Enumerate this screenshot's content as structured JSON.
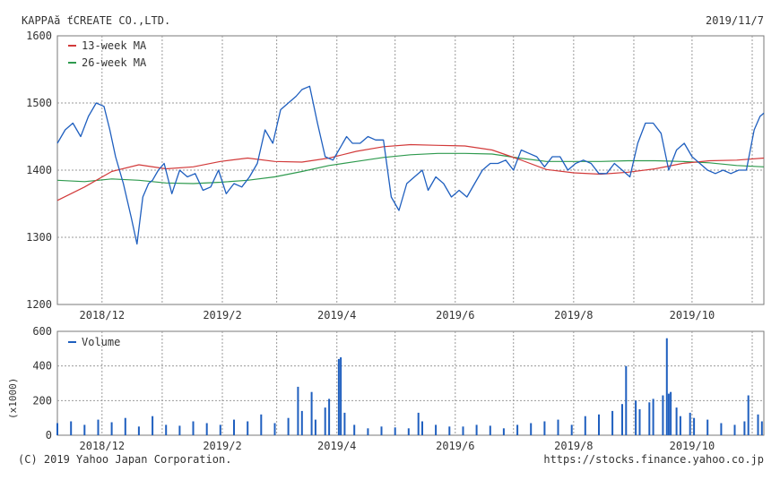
{
  "header": {
    "company": "KAPPAă ťCREATE CO.,LTD.",
    "date": "2019/11/7"
  },
  "footer": {
    "copyright": "(C) 2019 Yahoo Japan Corporation.",
    "url": "https://stocks.finance.yahoo.co.jp"
  },
  "colors": {
    "price": "#1f5fbf",
    "ma13": "#d23a3a",
    "ma26": "#2e9a4e",
    "volume": "#1f5fbf",
    "grid": "#9a9a9a"
  },
  "chart_data": [
    {
      "type": "line",
      "title": "",
      "x_range": [
        "2018-11-08",
        "2019-11-07"
      ],
      "ylim": [
        1200,
        1600
      ],
      "yticks": [
        1200,
        1300,
        1400,
        1500,
        1600
      ],
      "xtick_labels": [
        "2018/12",
        "2019/2",
        "2019/4",
        "2019/6",
        "2019/8",
        "2019/10"
      ],
      "xtick_dates": [
        "2018-12-01",
        "2019-02-01",
        "2019-04-01",
        "2019-06-01",
        "2019-08-01",
        "2019-10-01"
      ],
      "legend": [
        {
          "name": "13-week MA",
          "color": "#d23a3a"
        },
        {
          "name": "26-week MA",
          "color": "#2e9a4e"
        }
      ],
      "legend_position": "top-left",
      "grid": true,
      "price_series": {
        "x": [
          "2018-11-08",
          "2018-11-12",
          "2018-11-16",
          "2018-11-20",
          "2018-11-24",
          "2018-11-28",
          "2018-12-02",
          "2018-12-05",
          "2018-12-08",
          "2018-12-12",
          "2018-12-16",
          "2018-12-19",
          "2018-12-22",
          "2018-12-25",
          "2018-12-27",
          "2018-12-30",
          "2019-01-02",
          "2019-01-06",
          "2019-01-10",
          "2019-01-14",
          "2019-01-18",
          "2019-01-22",
          "2019-01-26",
          "2019-01-30",
          "2019-02-03",
          "2019-02-07",
          "2019-02-11",
          "2019-02-15",
          "2019-02-19",
          "2019-02-23",
          "2019-02-27",
          "2019-03-03",
          "2019-03-07",
          "2019-03-11",
          "2019-03-14",
          "2019-03-18",
          "2019-03-22",
          "2019-03-26",
          "2019-03-30",
          "2019-04-03",
          "2019-04-06",
          "2019-04-09",
          "2019-04-13",
          "2019-04-17",
          "2019-04-21",
          "2019-04-25",
          "2019-04-29",
          "2019-05-03",
          "2019-05-07",
          "2019-05-11",
          "2019-05-15",
          "2019-05-18",
          "2019-05-22",
          "2019-05-26",
          "2019-05-30",
          "2019-06-03",
          "2019-06-07",
          "2019-06-11",
          "2019-06-15",
          "2019-06-19",
          "2019-06-23",
          "2019-06-27",
          "2019-07-01",
          "2019-07-05",
          "2019-07-09",
          "2019-07-13",
          "2019-07-17",
          "2019-07-21",
          "2019-07-25",
          "2019-07-29",
          "2019-08-02",
          "2019-08-06",
          "2019-08-10",
          "2019-08-14",
          "2019-08-18",
          "2019-08-22",
          "2019-08-26",
          "2019-08-30",
          "2019-09-03",
          "2019-09-07",
          "2019-09-11",
          "2019-09-15",
          "2019-09-19",
          "2019-09-23",
          "2019-09-27",
          "2019-10-01",
          "2019-10-05",
          "2019-10-09",
          "2019-10-13",
          "2019-10-17",
          "2019-10-21",
          "2019-10-25",
          "2019-10-29",
          "2019-11-02",
          "2019-11-05",
          "2019-11-07"
        ],
        "y": [
          1440,
          1460,
          1470,
          1450,
          1480,
          1500,
          1495,
          1460,
          1420,
          1380,
          1330,
          1290,
          1360,
          1380,
          1385,
          1400,
          1410,
          1365,
          1400,
          1390,
          1395,
          1370,
          1375,
          1400,
          1365,
          1380,
          1375,
          1390,
          1410,
          1460,
          1440,
          1490,
          1500,
          1510,
          1520,
          1525,
          1470,
          1420,
          1415,
          1435,
          1450,
          1440,
          1440,
          1450,
          1445,
          1445,
          1360,
          1340,
          1380,
          1390,
          1400,
          1370,
          1390,
          1380,
          1360,
          1370,
          1360,
          1380,
          1400,
          1410,
          1410,
          1415,
          1400,
          1430,
          1425,
          1420,
          1405,
          1420,
          1420,
          1400,
          1410,
          1415,
          1410,
          1395,
          1395,
          1410,
          1400,
          1390,
          1440,
          1470,
          1470,
          1455,
          1400,
          1430,
          1440,
          1420,
          1410,
          1400,
          1395,
          1400,
          1395,
          1400,
          1400,
          1460,
          1480,
          1485
        ]
      },
      "ma13": {
        "x": [
          "2018-11-08",
          "2018-11-22",
          "2018-12-06",
          "2018-12-20",
          "2019-01-03",
          "2019-01-17",
          "2019-01-31",
          "2019-02-14",
          "2019-02-28",
          "2019-03-14",
          "2019-03-28",
          "2019-04-11",
          "2019-04-25",
          "2019-05-09",
          "2019-05-23",
          "2019-06-06",
          "2019-06-20",
          "2019-07-04",
          "2019-07-18",
          "2019-08-01",
          "2019-08-15",
          "2019-08-29",
          "2019-09-12",
          "2019-09-26",
          "2019-10-10",
          "2019-10-24",
          "2019-11-07"
        ],
        "y": [
          1355,
          1375,
          1398,
          1408,
          1402,
          1405,
          1413,
          1418,
          1413,
          1412,
          1418,
          1428,
          1435,
          1438,
          1437,
          1436,
          1430,
          1416,
          1401,
          1396,
          1394,
          1397,
          1402,
          1410,
          1414,
          1415,
          1418
        ]
      },
      "ma26": {
        "x": [
          "2018-11-08",
          "2018-11-22",
          "2018-12-06",
          "2018-12-20",
          "2019-01-03",
          "2019-01-17",
          "2019-01-31",
          "2019-02-14",
          "2019-02-28",
          "2019-03-14",
          "2019-03-28",
          "2019-04-11",
          "2019-04-25",
          "2019-05-09",
          "2019-05-23",
          "2019-06-06",
          "2019-06-20",
          "2019-07-04",
          "2019-07-18",
          "2019-08-01",
          "2019-08-15",
          "2019-08-29",
          "2019-09-12",
          "2019-09-26",
          "2019-10-10",
          "2019-10-24",
          "2019-11-07"
        ],
        "y": [
          1385,
          1383,
          1387,
          1385,
          1381,
          1380,
          1382,
          1385,
          1390,
          1398,
          1407,
          1413,
          1419,
          1423,
          1425,
          1425,
          1424,
          1418,
          1413,
          1413,
          1413,
          1414,
          1414,
          1413,
          1411,
          1407,
          1405
        ]
      }
    },
    {
      "type": "bar",
      "legend": [
        {
          "name": "Volume",
          "color": "#1f5fbf"
        }
      ],
      "ylim": [
        0,
        600
      ],
      "yticks": [
        0,
        200,
        400,
        600
      ],
      "ylabel": "(x1000)",
      "x": [
        "2018-11-08",
        "2018-11-15",
        "2018-11-22",
        "2018-11-29",
        "2018-12-06",
        "2018-12-13",
        "2018-12-20",
        "2018-12-27",
        "2019-01-03",
        "2019-01-10",
        "2019-01-17",
        "2019-01-24",
        "2019-01-31",
        "2019-02-07",
        "2019-02-14",
        "2019-02-21",
        "2019-02-28",
        "2019-03-07",
        "2019-03-12",
        "2019-03-14",
        "2019-03-19",
        "2019-03-21",
        "2019-03-26",
        "2019-03-28",
        "2019-04-02",
        "2019-04-03",
        "2019-04-05",
        "2019-04-10",
        "2019-04-17",
        "2019-04-24",
        "2019-05-01",
        "2019-05-08",
        "2019-05-13",
        "2019-05-15",
        "2019-05-22",
        "2019-05-29",
        "2019-06-05",
        "2019-06-12",
        "2019-06-19",
        "2019-06-26",
        "2019-07-03",
        "2019-07-10",
        "2019-07-17",
        "2019-07-24",
        "2019-07-31",
        "2019-08-07",
        "2019-08-14",
        "2019-08-21",
        "2019-08-26",
        "2019-08-28",
        "2019-09-02",
        "2019-09-04",
        "2019-09-09",
        "2019-09-11",
        "2019-09-16",
        "2019-09-18",
        "2019-09-19",
        "2019-09-20",
        "2019-09-23",
        "2019-09-25",
        "2019-09-30",
        "2019-10-02",
        "2019-10-09",
        "2019-10-16",
        "2019-10-23",
        "2019-10-28",
        "2019-10-30",
        "2019-11-04",
        "2019-11-06"
      ],
      "values": [
        70,
        80,
        60,
        90,
        75,
        100,
        50,
        110,
        60,
        55,
        80,
        70,
        60,
        90,
        80,
        120,
        70,
        100,
        280,
        140,
        250,
        90,
        160,
        210,
        440,
        450,
        130,
        60,
        40,
        50,
        45,
        40,
        130,
        80,
        60,
        50,
        50,
        60,
        55,
        40,
        60,
        70,
        80,
        90,
        60,
        110,
        120,
        140,
        180,
        400,
        200,
        150,
        190,
        210,
        230,
        560,
        240,
        250,
        160,
        110,
        130,
        100,
        90,
        70,
        60,
        80,
        230,
        120,
        80
      ]
    }
  ]
}
